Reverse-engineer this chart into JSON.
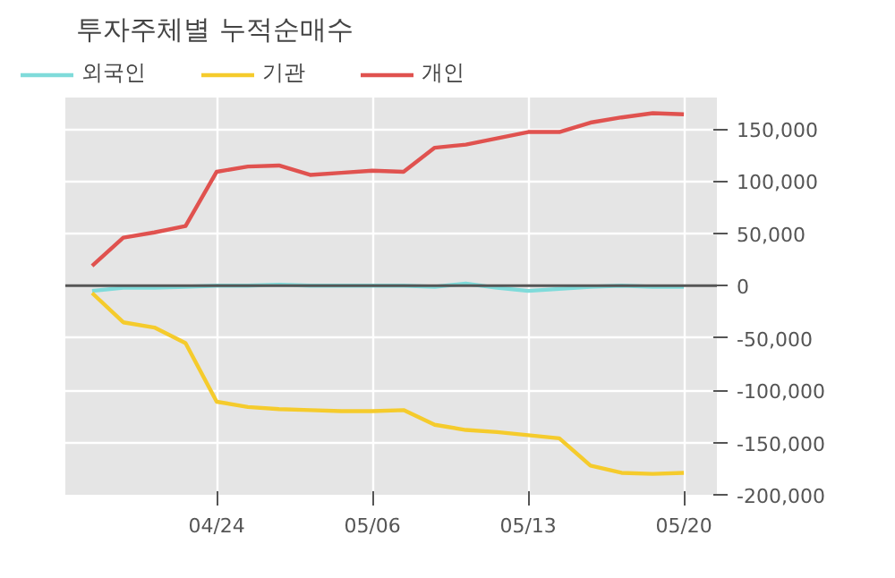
{
  "chart_data": {
    "type": "line",
    "title": "투자주체별 누적순매수",
    "categories": [
      null,
      null,
      null,
      null,
      "04/24",
      null,
      null,
      null,
      null,
      "05/06",
      null,
      null,
      null,
      null,
      "05/13",
      null,
      null,
      null,
      null,
      "05/20"
    ],
    "series": [
      {
        "name": "외국인",
        "color": "#7fdbda",
        "values": [
          -5000,
          -2000,
          -2000,
          -1000,
          0,
          0,
          1000,
          0,
          0,
          0,
          0,
          -1000,
          2000,
          -2000,
          -5000,
          -3000,
          -1000,
          0,
          -1000,
          -1000
        ]
      },
      {
        "name": "기관",
        "color": "#f5cb2c",
        "values": [
          -7000,
          -35000,
          -40000,
          -55000,
          -111000,
          -116000,
          -118000,
          -119000,
          -120000,
          -120000,
          -119000,
          -133000,
          -138000,
          -140000,
          -143000,
          -146000,
          -172000,
          -179000,
          -180000,
          -179000
        ]
      },
      {
        "name": "개인",
        "color": "#e0524f",
        "values": [
          19000,
          46000,
          51000,
          57000,
          109000,
          114000,
          115000,
          106000,
          108000,
          110000,
          109000,
          132000,
          135000,
          141000,
          147000,
          147000,
          156000,
          161000,
          165000,
          164000
        ]
      }
    ],
    "ylim": [
      -200000,
      180000
    ],
    "yticks": [
      {
        "value": -200000,
        "label": "-200,000"
      },
      {
        "value": -150000,
        "label": "-150,000"
      },
      {
        "value": -100000,
        "label": "-100,000"
      },
      {
        "value": -50000,
        "label": "-50,000"
      },
      0,
      {
        "value": 50000,
        "label": "50,000"
      },
      {
        "value": 100000,
        "label": "100,000"
      },
      {
        "value": 150000,
        "label": "150,000"
      }
    ],
    "ref_lines": [
      {
        "axis": "y",
        "value": 0,
        "color": "#555555"
      }
    ],
    "grid": true,
    "legend": "top left",
    "marker": "none",
    "line_style": "solid"
  }
}
